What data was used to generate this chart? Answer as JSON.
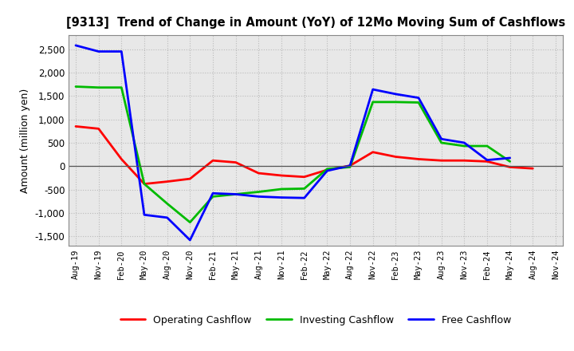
{
  "title": "[9313]  Trend of Change in Amount (YoY) of 12Mo Moving Sum of Cashflows",
  "ylabel": "Amount (million yen)",
  "xlabels": [
    "Aug-19",
    "Nov-19",
    "Feb-20",
    "May-20",
    "Aug-20",
    "Nov-20",
    "Feb-21",
    "May-21",
    "Aug-21",
    "Nov-21",
    "Feb-22",
    "May-22",
    "Aug-22",
    "Nov-22",
    "Feb-23",
    "May-23",
    "Aug-23",
    "Nov-23",
    "Feb-24",
    "May-24",
    "Aug-24",
    "Nov-24"
  ],
  "operating": [
    850,
    800,
    150,
    -380,
    -330,
    -270,
    120,
    80,
    -150,
    -200,
    -230,
    -80,
    10,
    300,
    200,
    150,
    120,
    120,
    100,
    -20,
    -50,
    null
  ],
  "investing": [
    1700,
    1680,
    1680,
    -380,
    -800,
    -1200,
    -650,
    -600,
    -550,
    -490,
    -480,
    -60,
    -20,
    1370,
    1370,
    1360,
    500,
    430,
    430,
    100,
    null,
    null
  ],
  "free": [
    2580,
    2450,
    2450,
    -1040,
    -1100,
    -1580,
    -580,
    -600,
    -650,
    -670,
    -680,
    -100,
    10,
    1640,
    1540,
    1460,
    580,
    500,
    130,
    175,
    null,
    null
  ],
  "ylim": [
    -1700,
    2800
  ],
  "yticks": [
    -1500,
    -1000,
    -500,
    0,
    500,
    1000,
    1500,
    2000,
    2500
  ],
  "operating_color": "#ff0000",
  "investing_color": "#00bb00",
  "free_color": "#0000ff",
  "plot_bg_color": "#e8e8e8",
  "outer_bg_color": "#ffffff",
  "grid_color": "#bbbbbb",
  "spine_color": "#888888",
  "linewidth": 2.0,
  "legend_labels": [
    "Operating Cashflow",
    "Investing Cashflow",
    "Free Cashflow"
  ]
}
